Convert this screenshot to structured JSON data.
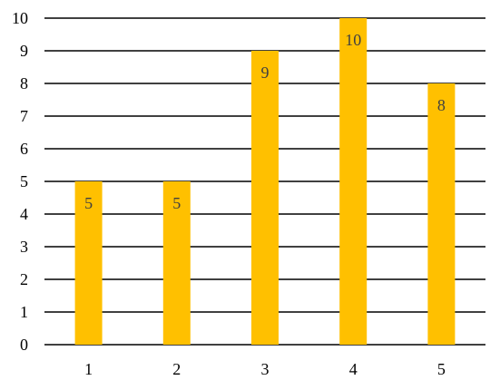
{
  "chart_data": {
    "type": "bar",
    "title": "",
    "xlabel": "",
    "ylabel": "",
    "categories": [
      "1",
      "2",
      "3",
      "4",
      "5"
    ],
    "values": [
      5,
      5,
      9,
      10,
      8
    ],
    "data_labels": [
      "5",
      "5",
      "9",
      "10",
      "8"
    ],
    "ylim": [
      0,
      10
    ],
    "yticks": [
      "0",
      "1",
      "2",
      "3",
      "4",
      "5",
      "6",
      "7",
      "8",
      "9",
      "10"
    ],
    "grid": true,
    "legend": "none",
    "colors": {
      "bar": "#FFC000",
      "grid": "#000000",
      "data_label": "#404040",
      "tick_label": "#000000"
    }
  }
}
